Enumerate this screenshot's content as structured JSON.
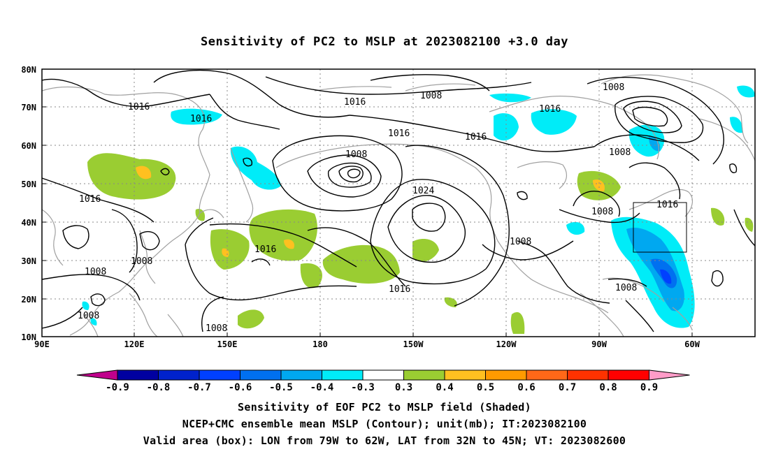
{
  "title": "Sensitivity of PC2 to MSLP at 2023082100 +3.0 day",
  "axes": {
    "lat_labels": [
      "80N",
      "70N",
      "60N",
      "50N",
      "40N",
      "30N",
      "20N",
      "10N"
    ],
    "lon_labels": [
      "90E",
      "120E",
      "150E",
      "180",
      "150W",
      "120W",
      "90W",
      "60W"
    ]
  },
  "contour_labels": [
    {
      "text": "1016"
    },
    {
      "text": "1016"
    },
    {
      "text": "1008"
    },
    {
      "text": "1016"
    },
    {
      "text": "1016"
    },
    {
      "text": "1008"
    },
    {
      "text": "1016"
    },
    {
      "text": "1016"
    },
    {
      "text": "1008"
    },
    {
      "text": "1016"
    },
    {
      "text": "1024"
    },
    {
      "text": "1016"
    },
    {
      "text": "1008"
    },
    {
      "text": "1008"
    },
    {
      "text": "1008"
    },
    {
      "text": "1008"
    },
    {
      "text": "1016"
    },
    {
      "text": "1008"
    },
    {
      "text": "1008"
    },
    {
      "text": "1008"
    },
    {
      "text": "1016"
    }
  ],
  "valid_box": {
    "lon_from": "79W",
    "lon_to": "62W",
    "lat_from": "32N",
    "lat_to": "45N"
  },
  "colorbar": {
    "labels": [
      "-0.9",
      "-0.8",
      "-0.7",
      "-0.6",
      "-0.5",
      "-0.4",
      "-0.3",
      "0.3",
      "0.4",
      "0.5",
      "0.6",
      "0.7",
      "0.8",
      "0.9"
    ],
    "colors": [
      "#0000a0",
      "#0022cc",
      "#0040ff",
      "#0070f0",
      "#00a8f0",
      "#00ecf8",
      "#ffffff",
      "#9acd32",
      "#ffc020",
      "#ff9a00",
      "#ff6818",
      "#ff3200",
      "#ff0000"
    ],
    "low_extend_color": "#c0008c",
    "high_extend_color": "#ff9cc8"
  },
  "captions": {
    "line1": "Sensitivity of EOF PC2 to MSLP field (Shaded)",
    "line2": "NCEP+CMC ensemble mean MSLP (Contour); unit(mb); IT:2023082100",
    "line3": "Valid area (box): LON from 79W to 62W, LAT from 32N to 45N; VT: 2023082600"
  }
}
